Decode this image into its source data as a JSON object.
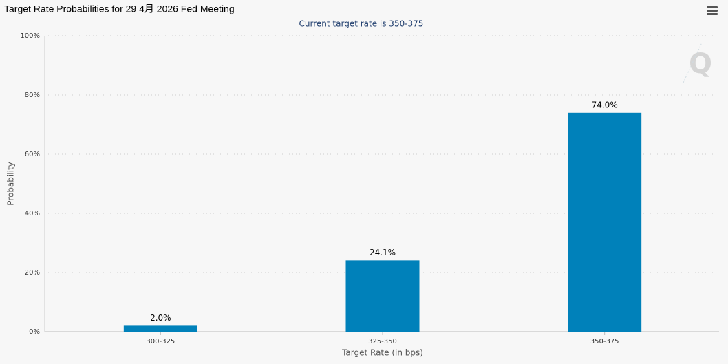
{
  "chart_data": {
    "type": "bar",
    "title": "Target Rate Probabilities for 29 4月 2026 Fed Meeting",
    "subtitle": "Current target rate is 350-375",
    "x_label": "Target Rate (in bps)",
    "y_label": "Probability",
    "categories": [
      "300-325",
      "325-350",
      "350-375"
    ],
    "values": [
      2.0,
      24.1,
      74.0
    ],
    "value_labels": [
      "2.0%",
      "24.1%",
      "74.0%"
    ],
    "color": "#0081ba",
    "ylim": [
      0,
      100
    ],
    "yticks": [
      {
        "value": 0,
        "label": "0%"
      },
      {
        "value": 20,
        "label": "20%"
      },
      {
        "value": 40,
        "label": "40%"
      },
      {
        "value": 60,
        "label": "60%"
      },
      {
        "value": 80,
        "label": "80%"
      },
      {
        "value": 100,
        "label": "100%"
      }
    ],
    "grid": true
  }
}
